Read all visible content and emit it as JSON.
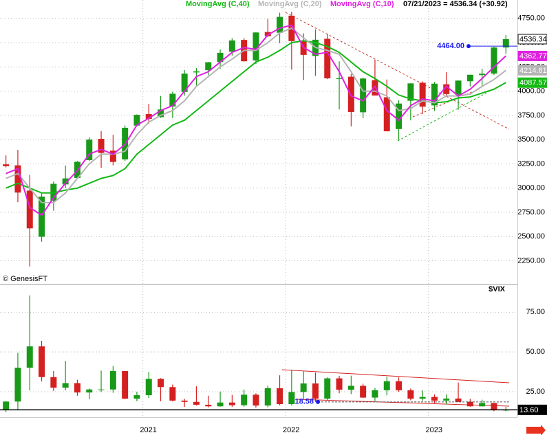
{
  "chart_data": [
    {
      "type": "candlestick",
      "header": "07/21/2023 = 4536.34 (+30.92)",
      "source": "© GenesisFT",
      "up_color": "#189a18",
      "down_color": "#d42020",
      "ohlc": [
        [
          3245,
          3337,
          3214,
          3226
        ],
        [
          3235,
          3394,
          2855,
          2954
        ],
        [
          2974,
          3136,
          2192,
          2585
        ],
        [
          2498,
          2954,
          2447,
          2912
        ],
        [
          2869,
          3068,
          2767,
          3044
        ],
        [
          3038,
          3233,
          2999,
          3100
        ],
        [
          3105,
          3280,
          3101,
          3271
        ],
        [
          3289,
          3523,
          3280,
          3500
        ],
        [
          3508,
          3588,
          3210,
          3363
        ],
        [
          3386,
          3550,
          3234,
          3270
        ],
        [
          3296,
          3646,
          3280,
          3622
        ],
        [
          3645,
          3760,
          3633,
          3756
        ],
        [
          3764,
          3870,
          3663,
          3714
        ],
        [
          3732,
          3950,
          3725,
          3811
        ],
        [
          3842,
          3994,
          3723,
          3973
        ],
        [
          3992,
          4218,
          3955,
          4181
        ],
        [
          4193,
          4238,
          4057,
          4204
        ],
        [
          4216,
          4302,
          4165,
          4298
        ],
        [
          4300,
          4430,
          4233,
          4395
        ],
        [
          4406,
          4546,
          4367,
          4523
        ],
        [
          4528,
          4546,
          4306,
          4308
        ],
        [
          4317,
          4608,
          4279,
          4605
        ],
        [
          4610,
          4744,
          4560,
          4567
        ],
        [
          4602,
          4809,
          4495,
          4766
        ],
        [
          4778,
          4819,
          4222,
          4516
        ],
        [
          4519,
          4596,
          4115,
          4374
        ],
        [
          4363,
          4637,
          4157,
          4530
        ],
        [
          4540,
          4593,
          4124,
          4132
        ],
        [
          4130,
          4307,
          3811,
          4132
        ],
        [
          4149,
          4178,
          3637,
          3785
        ],
        [
          3782,
          4140,
          3721,
          4130
        ],
        [
          4113,
          4325,
          3955,
          3955
        ],
        [
          3937,
          4120,
          3585,
          3586
        ],
        [
          3609,
          3906,
          3492,
          3872
        ],
        [
          3901,
          4080,
          3699,
          4080
        ],
        [
          4087,
          4101,
          3765,
          3840
        ],
        [
          3853,
          4095,
          3795,
          4077
        ],
        [
          4071,
          4195,
          3943,
          3970
        ],
        [
          3964,
          4110,
          3809,
          4109
        ],
        [
          4102,
          4170,
          4049,
          4169
        ],
        [
          4166,
          4231,
          4048,
          4180
        ],
        [
          4181,
          4458,
          4166,
          4450
        ],
        [
          4450,
          4578,
          4385,
          4536
        ]
      ],
      "series": [
        {
          "name": "MovingAvg (C,40)",
          "color": "#14b814",
          "values": [
            3000,
            3050,
            3000,
            2950,
            2950,
            2980,
            3000,
            3050,
            3100,
            3130,
            3200,
            3350,
            3450,
            3550,
            3650,
            3700,
            3800,
            3900,
            4000,
            4100,
            4200,
            4300,
            4350,
            4420,
            4500,
            4520,
            4500,
            4460,
            4400,
            4300,
            4200,
            4130,
            4050,
            3960,
            3920,
            3900,
            3880,
            3890,
            3930,
            3940,
            3980,
            4020,
            4088
          ]
        },
        {
          "name": "MovingAvg (C,20)",
          "color": "#b4b4b4",
          "values": [
            3100,
            3150,
            3000,
            2850,
            2850,
            2950,
            3100,
            3250,
            3350,
            3350,
            3380,
            3550,
            3680,
            3750,
            3800,
            3900,
            4050,
            4150,
            4250,
            4330,
            4420,
            4420,
            4500,
            4600,
            4650,
            4550,
            4450,
            4420,
            4380,
            4200,
            4000,
            4000,
            3950,
            3800,
            3820,
            3900,
            3880,
            3950,
            3950,
            3970,
            4050,
            4120,
            4215
          ]
        },
        {
          "name": "MovingAvg (C,10)",
          "color": "#e020e0",
          "values": [
            3150,
            3200,
            2800,
            2720,
            2900,
            3050,
            3180,
            3350,
            3400,
            3350,
            3450,
            3650,
            3720,
            3800,
            3850,
            4000,
            4150,
            4200,
            4300,
            4400,
            4450,
            4430,
            4580,
            4650,
            4680,
            4450,
            4380,
            4400,
            4200,
            3950,
            3900,
            4050,
            3800,
            3700,
            3850,
            3920,
            3900,
            4050,
            3950,
            4020,
            4130,
            4250,
            4363
          ]
        }
      ],
      "last_labels": [
        {
          "value": 4536.34,
          "label": "4536.34",
          "fill": "#ffffff",
          "text_color": "#000000"
        },
        {
          "value": 4362.77,
          "label": "4362.77",
          "fill": "#e020e0",
          "text_color": "#ffffff"
        },
        {
          "value": 4214.61,
          "label": "4214.61",
          "fill": "#b4b4b4",
          "text_color": "#ffffff"
        },
        {
          "value": 4087.57,
          "label": "4087.57",
          "fill": "#14b814",
          "text_color": "#ffffff"
        }
      ],
      "level": {
        "value": 4464,
        "label": "4464.00",
        "color": "#1a1aee"
      },
      "ylim": [
        2020,
        4940
      ],
      "yticks": [
        {
          "value": 2250,
          "label": "2250.00"
        },
        {
          "value": 2500,
          "label": "2500.00"
        },
        {
          "value": 2750,
          "label": "2750.00"
        },
        {
          "value": 3000,
          "label": "3000.00"
        },
        {
          "value": 3250,
          "label": "3250.00"
        },
        {
          "value": 3500,
          "label": "3500.00"
        },
        {
          "value": 3750,
          "label": "3750.00"
        },
        {
          "value": 4000,
          "label": "4000.00"
        },
        {
          "value": 4250,
          "label": "4250.00"
        },
        {
          "value": 4500,
          "label": "4500.00"
        },
        {
          "value": 4750,
          "label": "4750.00"
        }
      ],
      "grid": true
    },
    {
      "type": "candlestick",
      "title": "$VIX",
      "up_color": "#189a18",
      "down_color": "#d42020",
      "categories": [
        null,
        null,
        null,
        null,
        null,
        null,
        null,
        null,
        null,
        null,
        null,
        null,
        "2021",
        null,
        null,
        null,
        null,
        null,
        null,
        null,
        null,
        null,
        null,
        null,
        "2022",
        null,
        null,
        null,
        null,
        null,
        null,
        null,
        null,
        null,
        null,
        null,
        "2023",
        null,
        null,
        null,
        null,
        null,
        null
      ],
      "ohlc": [
        [
          13.8,
          19.0,
          12.1,
          18.8
        ],
        [
          18.8,
          49.5,
          13.4,
          40.1
        ],
        [
          40.1,
          85.5,
          25.8,
          53.5
        ],
        [
          53.5,
          57.0,
          31.5,
          34.2
        ],
        [
          34.2,
          38.0,
          25.5,
          27.5
        ],
        [
          27.5,
          44.4,
          25.8,
          30.4
        ],
        [
          30.4,
          32.5,
          22.5,
          24.5
        ],
        [
          24.5,
          27.0,
          20.3,
          26.4
        ],
        [
          26.4,
          38.3,
          24.8,
          26.4
        ],
        [
          26.4,
          41.2,
          24.3,
          38.0
        ],
        [
          38.0,
          38.0,
          20.3,
          20.6
        ],
        [
          20.6,
          25.0,
          19.0,
          22.8
        ],
        [
          22.8,
          37.5,
          21.0,
          33.1
        ],
        [
          33.1,
          33.5,
          19.0,
          27.9
        ],
        [
          27.9,
          29.5,
          18.9,
          19.4
        ],
        [
          19.4,
          20.5,
          15.4,
          18.6
        ],
        [
          18.6,
          28.4,
          16.3,
          16.8
        ],
        [
          16.8,
          22.5,
          15.1,
          15.8
        ],
        [
          15.8,
          25.1,
          15.6,
          18.2
        ],
        [
          18.2,
          23.0,
          15.5,
          16.5
        ],
        [
          16.5,
          26.4,
          15.6,
          23.1
        ],
        [
          23.1,
          24.0,
          15.0,
          16.3
        ],
        [
          16.3,
          28.8,
          15.2,
          27.2
        ],
        [
          27.2,
          35.3,
          16.4,
          17.2
        ],
        [
          17.2,
          38.9,
          16.3,
          24.8
        ],
        [
          24.8,
          37.8,
          19.9,
          30.2
        ],
        [
          30.2,
          37.0,
          18.6,
          20.6
        ],
        [
          20.6,
          34.0,
          19.3,
          33.4
        ],
        [
          33.4,
          35.0,
          24.0,
          26.2
        ],
        [
          26.2,
          35.1,
          23.5,
          28.7
        ],
        [
          28.7,
          30.0,
          21.0,
          21.3
        ],
        [
          21.3,
          27.3,
          19.1,
          25.9
        ],
        [
          25.9,
          34.5,
          22.7,
          31.6
        ],
        [
          31.6,
          34.0,
          25.0,
          25.9
        ],
        [
          25.9,
          27.0,
          19.6,
          20.6
        ],
        [
          20.6,
          25.9,
          19.3,
          21.7
        ],
        [
          21.7,
          23.3,
          17.9,
          19.4
        ],
        [
          19.4,
          23.3,
          17.0,
          20.7
        ],
        [
          20.7,
          30.8,
          18.5,
          18.7
        ],
        [
          18.7,
          20.5,
          15.6,
          15.8
        ],
        [
          15.8,
          20.0,
          15.6,
          17.9
        ],
        [
          17.9,
          18.0,
          12.7,
          13.6
        ],
        [
          13.6,
          15.5,
          12.7,
          13.6
        ]
      ],
      "last_labels": [
        {
          "value": 13.6,
          "label": "13.60",
          "fill": "#000000",
          "text_color": "#ffffff"
        }
      ],
      "level": {
        "value": 18.58,
        "label": "18.58",
        "color": "#1a1aee"
      },
      "ylim": [
        9,
        92
      ],
      "yticks": [
        {
          "value": 25,
          "label": "25.00"
        },
        {
          "value": 50,
          "label": "50.00"
        },
        {
          "value": 75,
          "label": "75.00"
        }
      ],
      "grid": true
    }
  ]
}
